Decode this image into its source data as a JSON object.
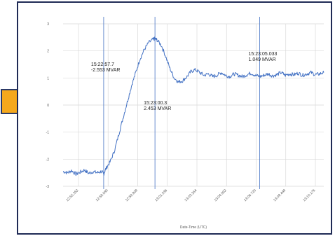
{
  "colors": {
    "series": "#4472c4",
    "marker_line": "#4472c4",
    "grid": "#d9d9d9",
    "frame_border": "#1f2a55",
    "arrow_fill": "#f5a81c",
    "arrow_stroke": "#2b3a67"
  },
  "pointer": {
    "icon": "right-arrow-icon"
  },
  "chart_data": {
    "type": "line",
    "title": "",
    "xlabel": "Date-Time (UTC)",
    "ylabel": "",
    "ylim": [
      -3,
      3
    ],
    "y_ticks": [
      "3",
      "2",
      "1",
      "0",
      "-1",
      "-2",
      "-3"
    ],
    "x_range_seconds": [
      0,
      61
    ],
    "x_tick_labels": [
      "12:55.352",
      "12:58.080",
      "12:59.808",
      "13:01.536",
      "13:03.264",
      "13:04.992",
      "13:06.720",
      "13:08.448",
      "13:10.176"
    ],
    "grid": true,
    "markers": [
      {
        "label": "15:22:57.7",
        "value": "-2.553 MVAR",
        "x": 9.5,
        "y": -2.553
      },
      {
        "label": "15:23:00.3",
        "value": "2.453 MVAR",
        "x": 21.5,
        "y": 2.453
      },
      {
        "label": "15:23:05.033",
        "value": "1.049 MVAR",
        "x": 46.0,
        "y": 1.049
      }
    ],
    "series": [
      {
        "x": [
          0,
          1,
          2,
          3,
          4,
          5,
          6,
          7,
          8,
          9,
          9.5,
          10,
          11,
          12,
          13,
          14,
          15,
          16,
          17,
          18,
          19,
          20,
          21,
          21.5,
          22,
          23,
          24,
          25,
          26,
          27,
          28,
          29,
          30,
          31,
          32,
          33,
          34,
          35,
          36,
          37,
          38,
          39,
          40,
          41,
          42,
          43,
          44,
          45,
          46,
          47,
          48,
          49,
          50,
          51,
          52,
          53,
          54,
          55,
          56,
          57,
          58,
          59,
          60,
          61
        ],
        "values": [
          -2.45,
          -2.5,
          -2.42,
          -2.55,
          -2.48,
          -2.4,
          -2.52,
          -2.46,
          -2.5,
          -2.45,
          -2.553,
          -2.35,
          -2.1,
          -1.7,
          -1.1,
          -0.5,
          0.1,
          0.7,
          1.2,
          1.7,
          2.05,
          2.3,
          2.42,
          2.453,
          2.4,
          2.2,
          1.8,
          1.35,
          1.0,
          0.85,
          0.9,
          1.05,
          1.25,
          1.3,
          1.2,
          1.1,
          1.15,
          1.05,
          1.1,
          1.2,
          1.1,
          1.05,
          1.15,
          1.1,
          1.05,
          1.12,
          1.18,
          1.1,
          1.049,
          1.1,
          1.15,
          1.08,
          1.12,
          1.2,
          1.1,
          1.15,
          1.12,
          1.18,
          1.1,
          1.15,
          1.2,
          1.12,
          1.15,
          1.2
        ]
      }
    ]
  }
}
